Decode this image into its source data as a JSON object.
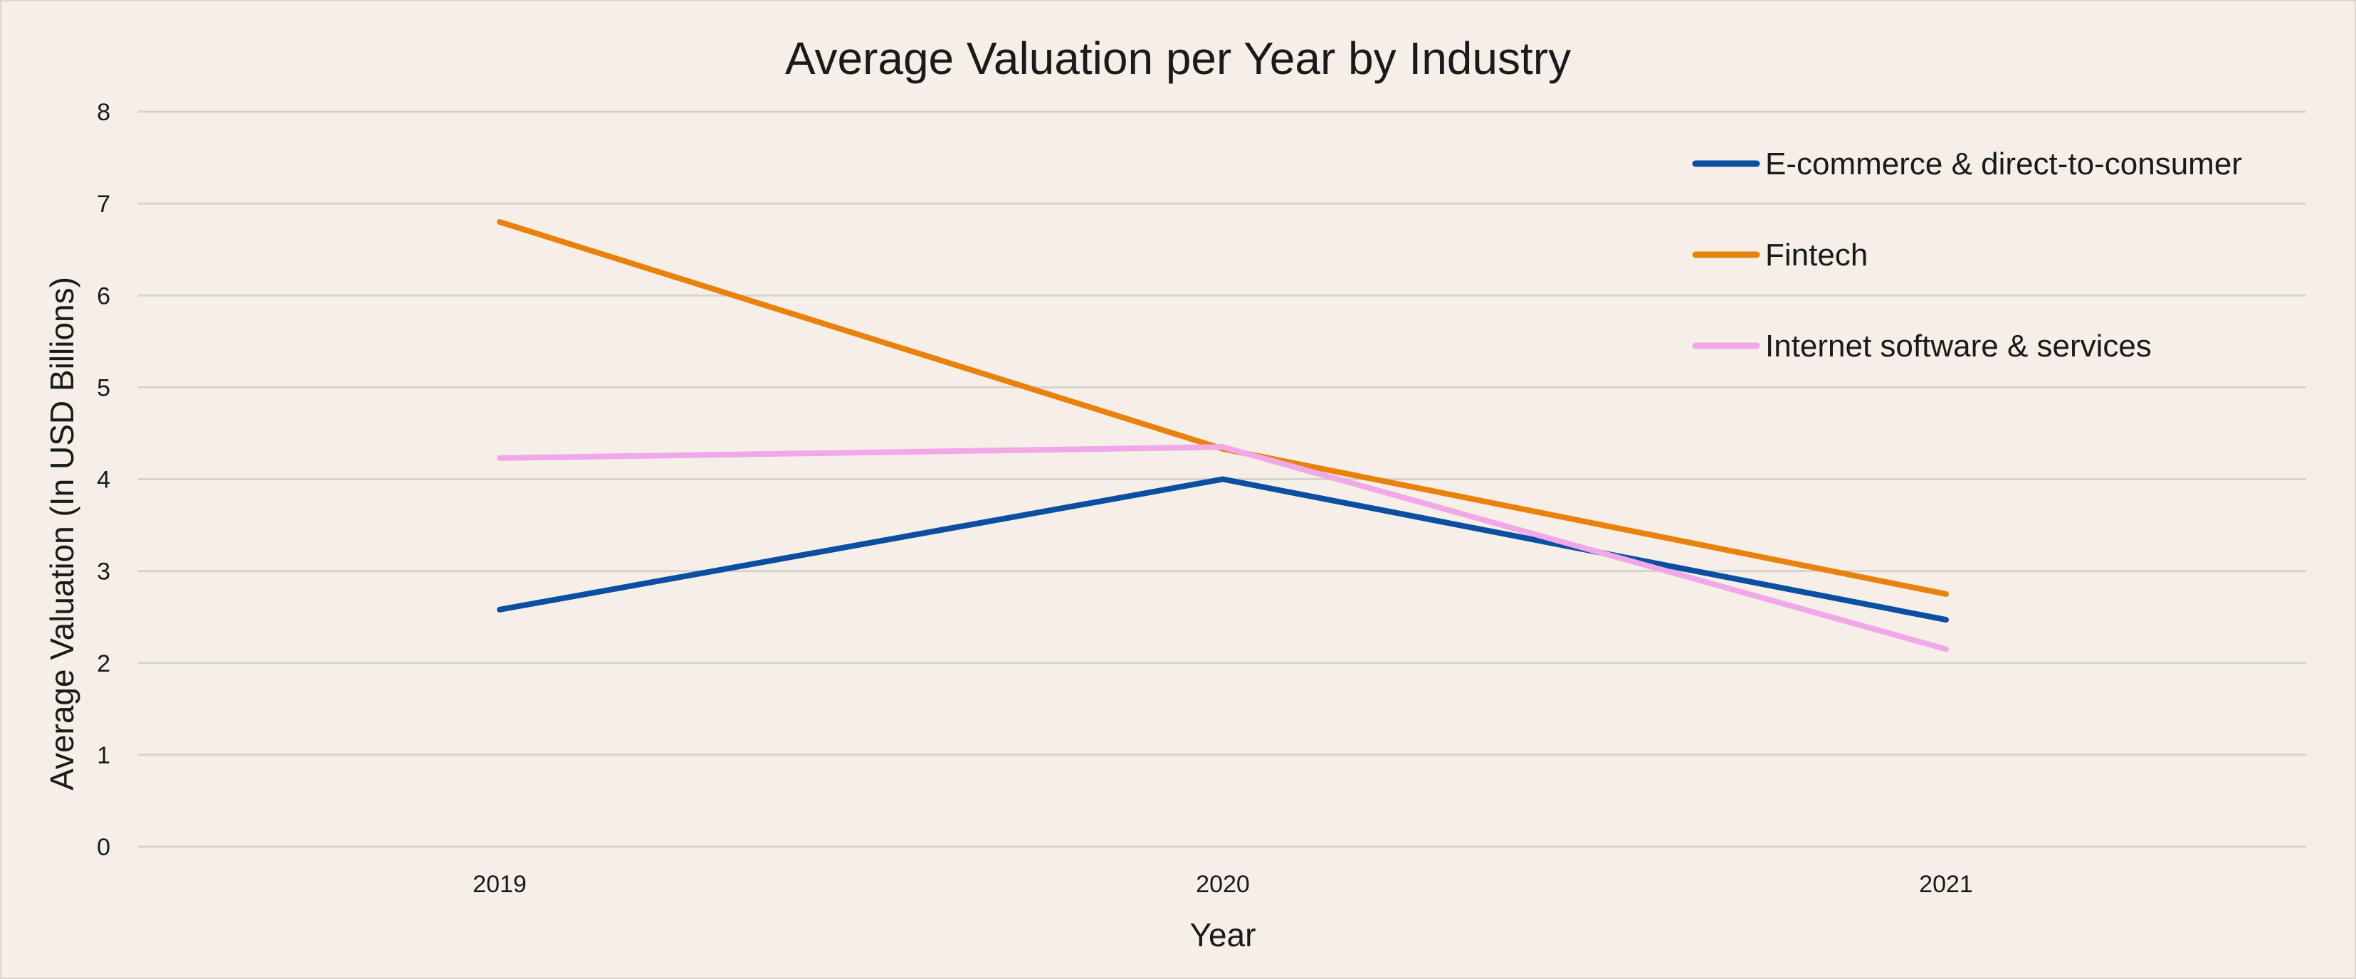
{
  "chart_data": {
    "type": "line",
    "title": "Average Valuation per Year by Industry",
    "xlabel": "Year",
    "ylabel": "Average Valuation (In USD Billions)",
    "categories": [
      "2019",
      "2020",
      "2021"
    ],
    "ylim": [
      0,
      8
    ],
    "yticks": [
      "0",
      "1",
      "2",
      "3",
      "4",
      "5",
      "6",
      "7",
      "8"
    ],
    "grid": true,
    "legend_position": "top-right",
    "series": [
      {
        "name": "E-commerce & direct-to-consumer",
        "color": "#0b4ea2",
        "values": [
          2.58,
          4.0,
          2.47
        ]
      },
      {
        "name": "Fintech",
        "color": "#e8820c",
        "values": [
          6.8,
          4.33,
          2.75
        ]
      },
      {
        "name": "Internet software & services",
        "color": "#f0a8e8",
        "values": [
          4.23,
          4.35,
          2.15
        ]
      }
    ]
  }
}
